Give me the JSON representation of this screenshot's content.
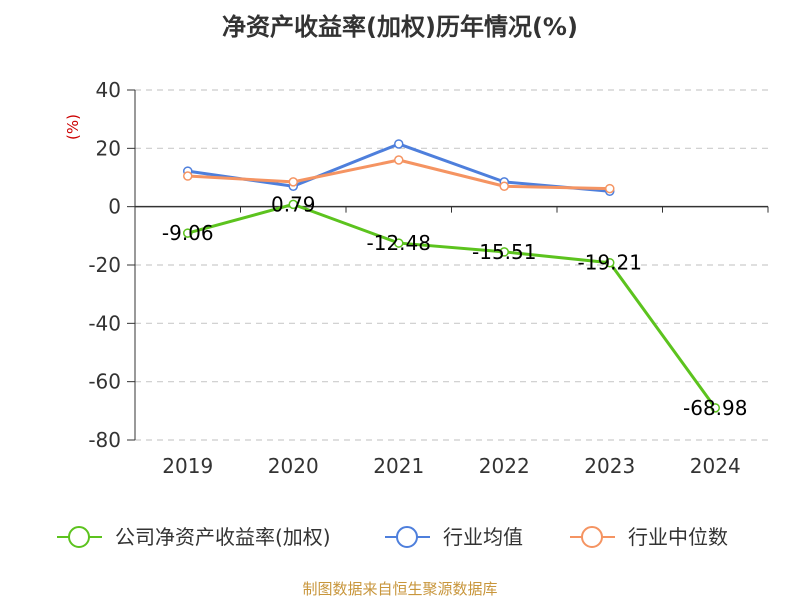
{
  "chart_data": {
    "type": "line",
    "title": "净资产收益率(加权)历年情况(%)",
    "ylabel": "(%)",
    "xlabel": "",
    "categories": [
      "2019",
      "2020",
      "2021",
      "2022",
      "2023",
      "2024"
    ],
    "ylim": [
      -80,
      40
    ],
    "yticks": [
      40,
      20,
      0,
      -20,
      -40,
      -60,
      -80
    ],
    "grid": true,
    "legend_position": "bottom",
    "series": [
      {
        "name": "公司净资产收益率(加权)",
        "color": "#5cc31e",
        "values": [
          -9.06,
          0.79,
          -12.48,
          -15.51,
          -19.21,
          -68.98
        ],
        "data_labels": [
          "-9.06",
          "0.79",
          "-12.48",
          "-15.51",
          "-19.21",
          "-68.98"
        ]
      },
      {
        "name": "行业均值",
        "color": "#4e7fdc",
        "values": [
          12.2,
          7.0,
          21.5,
          8.5,
          5.3,
          null
        ]
      },
      {
        "name": "行业中位数",
        "color": "#f59462",
        "values": [
          10.5,
          8.5,
          16.0,
          7.0,
          6.2,
          null
        ]
      }
    ]
  },
  "footer": {
    "source": "制图数据来自恒生聚源数据库"
  }
}
